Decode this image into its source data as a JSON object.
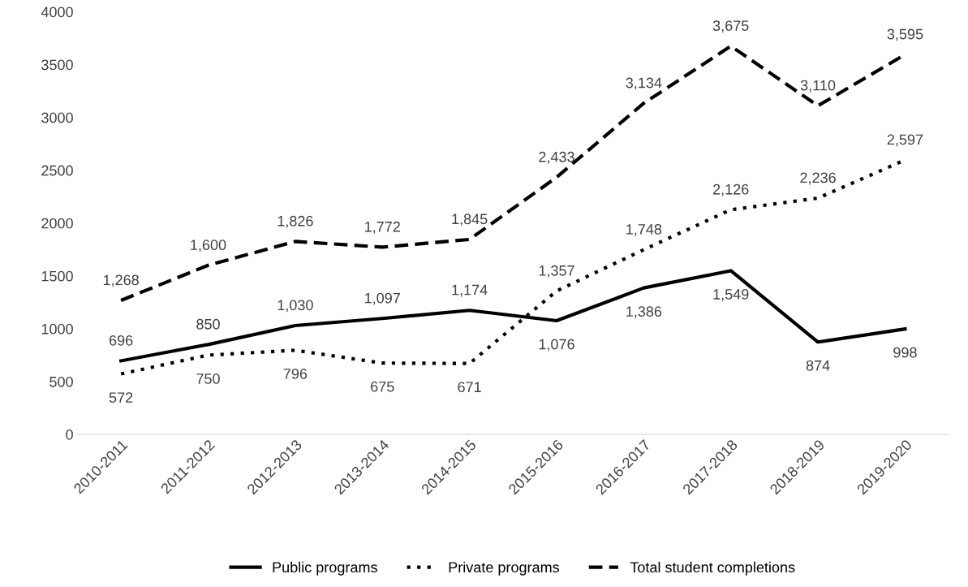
{
  "chart_data": {
    "type": "line",
    "categories": [
      "2010-2011",
      "2011-2012",
      "2012-2013",
      "2013-2014",
      "2014-2015",
      "2015-2016",
      "2016-2017",
      "2017-2018",
      "2018-2019",
      "2019-2020"
    ],
    "series": [
      {
        "name": "Public programs",
        "color": "#000000",
        "line_style": "solid",
        "values": [
          696,
          850,
          1030,
          1097,
          1174,
          1076,
          1386,
          1549,
          874,
          998
        ],
        "value_labels": [
          "696",
          "850",
          "1,030",
          "1,097",
          "1,174",
          "1,076",
          "1,386",
          "1,549",
          "874",
          "998"
        ]
      },
      {
        "name": "Private programs",
        "color": "#000000",
        "line_style": "dotted",
        "values": [
          572,
          750,
          796,
          675,
          671,
          1357,
          1748,
          2126,
          2236,
          2597
        ],
        "value_labels": [
          "572",
          "750",
          "796",
          "675",
          "671",
          "1,357",
          "1,748",
          "2,126",
          "2,236",
          "2,597"
        ]
      },
      {
        "name": "Total student completions",
        "color": "#000000",
        "line_style": "dashed",
        "values": [
          1268,
          1600,
          1826,
          1772,
          1845,
          2433,
          3134,
          3675,
          3110,
          3595
        ],
        "value_labels": [
          "1,268",
          "1,600",
          "1,826",
          "1,772",
          "1,845",
          "2,433",
          "3,134",
          "3,675",
          "3,110",
          "3,595"
        ]
      }
    ],
    "ylim": [
      0,
      4000
    ],
    "yticks": [
      0,
      500,
      1000,
      1500,
      2000,
      2500,
      3000,
      3500,
      4000
    ],
    "grid": false,
    "legend": "bottom",
    "marker": "none"
  }
}
